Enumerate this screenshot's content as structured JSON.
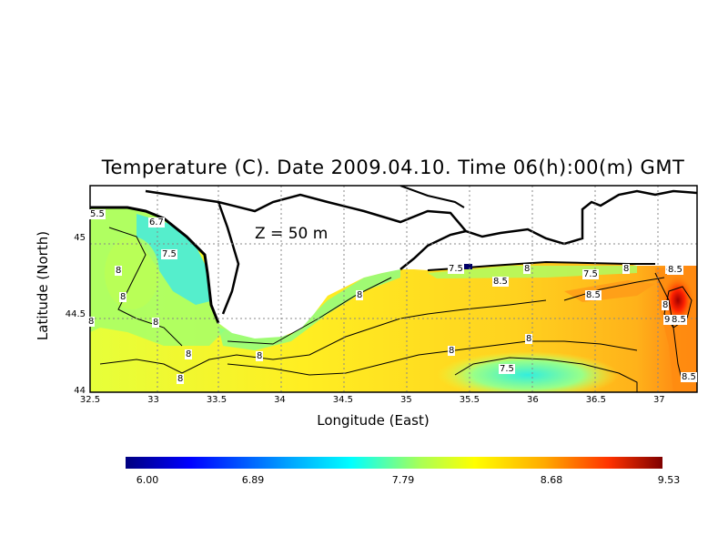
{
  "title": "Temperature (C). Date 2009.04.10. Time 06(h):00(m) GMT",
  "depth_label": "Z = 50 m",
  "axes": {
    "xlabel": "Longitude (East)",
    "ylabel": "Latitude (North)",
    "xlim": [
      32.5,
      37.3
    ],
    "ylim": [
      44.0,
      45.35
    ],
    "xticks": [
      "32.5",
      "33",
      "33.5",
      "34",
      "34.5",
      "35",
      "35.5",
      "36",
      "36.5",
      "37"
    ],
    "yticks": [
      "44",
      "44.5",
      "45"
    ],
    "grid": true
  },
  "colorbar": {
    "min": 6.0,
    "max": 9.53,
    "labels": [
      "6.00",
      "6.89",
      "7.79",
      "8.68",
      "9.53"
    ],
    "colors": [
      "#00007f",
      "#0000ff",
      "#00a0ff",
      "#00ffff",
      "#aaff55",
      "#ffff00",
      "#ffaa00",
      "#ff3300",
      "#7f0000"
    ]
  },
  "contour_labels": [
    "5.5",
    "6.7",
    "7.5",
    "8",
    "8",
    "8",
    "8",
    "8",
    "8",
    "8",
    "8",
    "7.5",
    "8",
    "8.5",
    "8",
    "8.5",
    "8",
    "7.5",
    "8",
    "8",
    "7.5",
    "8.5",
    "8",
    "8.5",
    "9",
    "8.5",
    "8.5"
  ],
  "chart_data": {
    "type": "heatmap",
    "title": "Temperature (C). Date 2009.04.10. Time 06(h):00(m) GMT",
    "xlabel": "Longitude (East)",
    "ylabel": "Latitude (North)",
    "value_range": [
      6.0,
      9.53
    ],
    "contour_levels": [
      7.5,
      8,
      8.5,
      9
    ]
  }
}
